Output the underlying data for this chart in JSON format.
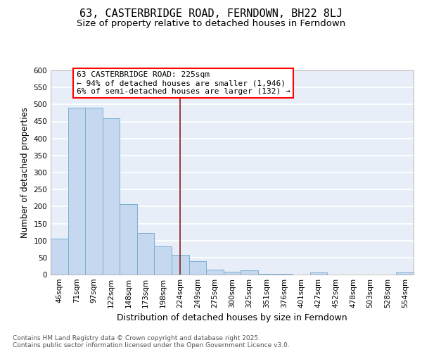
{
  "title": "63, CASTERBRIDGE ROAD, FERNDOWN, BH22 8LJ",
  "subtitle": "Size of property relative to detached houses in Ferndown",
  "xlabel": "Distribution of detached houses by size in Ferndown",
  "ylabel": "Number of detached properties",
  "categories": [
    "46sqm",
    "71sqm",
    "97sqm",
    "122sqm",
    "148sqm",
    "173sqm",
    "198sqm",
    "224sqm",
    "249sqm",
    "275sqm",
    "300sqm",
    "325sqm",
    "351sqm",
    "376sqm",
    "401sqm",
    "427sqm",
    "452sqm",
    "478sqm",
    "503sqm",
    "528sqm",
    "554sqm"
  ],
  "values": [
    105,
    490,
    490,
    460,
    207,
    123,
    83,
    57,
    40,
    15,
    9,
    12,
    3,
    3,
    0,
    7,
    0,
    0,
    0,
    0,
    7
  ],
  "bar_color": "#c5d8f0",
  "bar_edge_color": "#7aafd4",
  "vline_x": 7,
  "vline_color": "#8b1a1a",
  "annotation_text": "63 CASTERBRIDGE ROAD: 225sqm\n← 94% of detached houses are smaller (1,946)\n6% of semi-detached houses are larger (132) →",
  "ylim_max": 600,
  "yticks": [
    0,
    50,
    100,
    150,
    200,
    250,
    300,
    350,
    400,
    450,
    500,
    550,
    600
  ],
  "background_color": "#e8eef8",
  "grid_color": "#ffffff",
  "footer_text": "Contains HM Land Registry data © Crown copyright and database right 2025.\nContains public sector information licensed under the Open Government Licence v3.0.",
  "title_fontsize": 11,
  "subtitle_fontsize": 9.5,
  "tick_fontsize": 7.5,
  "ylabel_fontsize": 8.5,
  "xlabel_fontsize": 9,
  "annotation_fontsize": 8,
  "footer_fontsize": 6.5
}
